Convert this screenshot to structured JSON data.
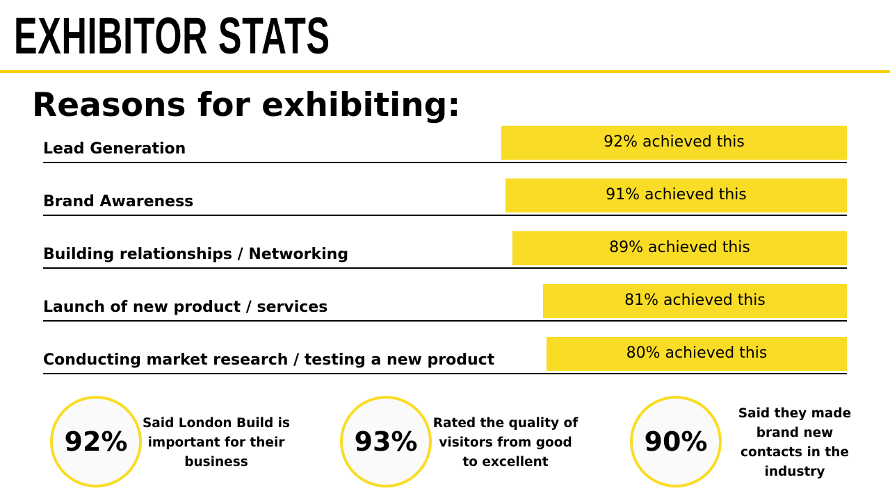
{
  "header": {
    "title": "EXHIBITOR STATS",
    "accent_color": "#f9dc25"
  },
  "subtitle": "Reasons for exhibiting:",
  "chart_data": {
    "type": "bar",
    "orientation": "horizontal",
    "categories": [
      "Lead Generation",
      "Brand Awareness",
      "Building relationships / Networking",
      "Launch of new product / services",
      "Conducting market research / testing a new product"
    ],
    "values": [
      92,
      91,
      89,
      81,
      80
    ],
    "data_labels": [
      "92% achieved this",
      "91% achieved this",
      "89% achieved this",
      "81% achieved this",
      "80% achieved this"
    ],
    "unit": "%",
    "bar_color": "#f9dc25",
    "grid": false
  },
  "stats": [
    {
      "value": "92%",
      "text": "Said London Build is important for their business"
    },
    {
      "value": "93%",
      "text": "Rated the quality of visitors from good to excellent"
    },
    {
      "value": "90%",
      "text": "Said they made brand new contacts in the industry"
    }
  ]
}
